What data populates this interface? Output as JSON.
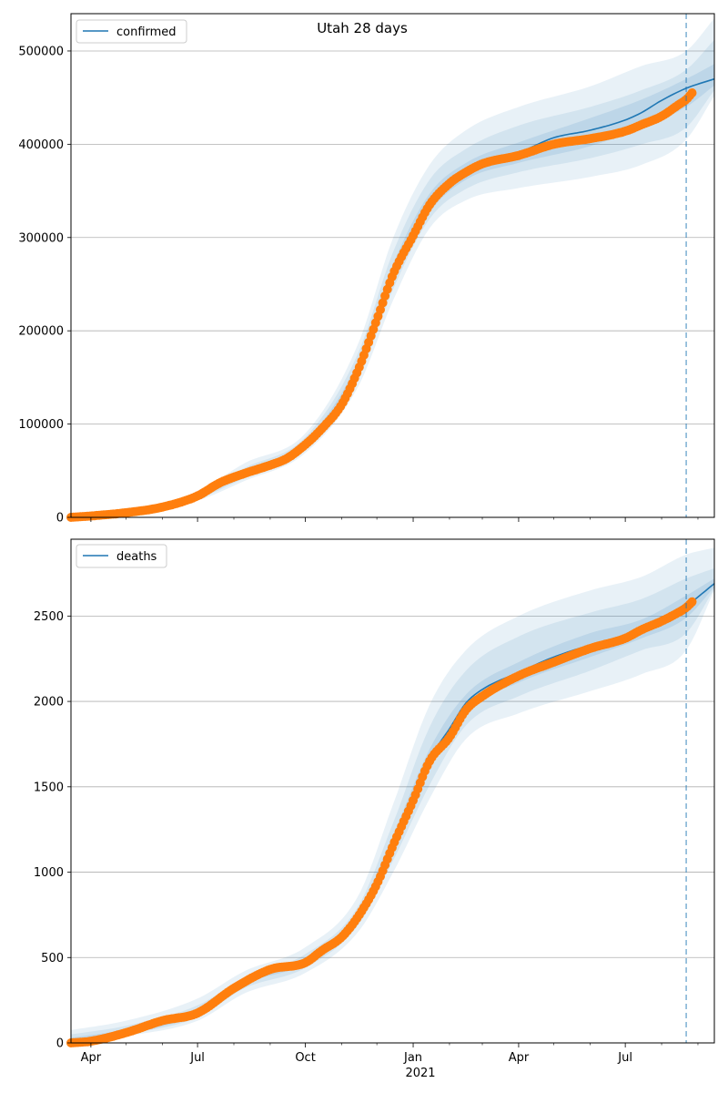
{
  "figure_title": "Utah 28 days",
  "x_tick_labels": [
    "Apr",
    "Jul",
    "Oct",
    "Jan",
    "Apr",
    "Jul"
  ],
  "x_year_label": "2021",
  "colors": {
    "model_line": "#1f77b4",
    "observed_points": "#ff7f0e",
    "band": "#1f77b4",
    "forecast_marker": "#1f77b4",
    "grid": "#b0b0b0"
  },
  "chart_data": [
    {
      "type": "line",
      "legend": "confirmed",
      "legend_position": "top-left",
      "grid": "horizontal",
      "xlim": [
        "2020-03-15",
        "2021-09-15"
      ],
      "ylim": [
        0,
        540000
      ],
      "yticks": [
        0,
        100000,
        200000,
        300000,
        400000,
        500000
      ],
      "ytick_labels": [
        "0",
        "100000",
        "200000",
        "300000",
        "400000",
        "500000"
      ],
      "forecast_start": "2021-08-22",
      "model": {
        "x": [
          "2020-03-15",
          "2020-04-01",
          "2020-05-01",
          "2020-06-01",
          "2020-07-01",
          "2020-07-20",
          "2020-08-10",
          "2020-09-01",
          "2020-09-15",
          "2020-10-01",
          "2020-10-15",
          "2020-11-01",
          "2020-11-15",
          "2020-12-01",
          "2020-12-15",
          "2021-01-01",
          "2021-01-15",
          "2021-02-01",
          "2021-02-15",
          "2021-03-01",
          "2021-04-01",
          "2021-05-01",
          "2021-06-01",
          "2021-07-01",
          "2021-07-15",
          "2021-08-01",
          "2021-08-22",
          "2021-09-15"
        ],
        "y": [
          0,
          1500,
          5000,
          11000,
          23000,
          37000,
          47000,
          56000,
          64000,
          79000,
          96000,
          122000,
          160000,
          213000,
          262000,
          303000,
          336000,
          359000,
          371000,
          380000,
          391000,
          407000,
          415000,
          426000,
          434000,
          447000,
          460000,
          470000
        ]
      },
      "observed": {
        "x": [
          "2020-03-15",
          "2020-04-01",
          "2020-05-01",
          "2020-06-01",
          "2020-07-01",
          "2020-07-20",
          "2020-08-10",
          "2020-09-01",
          "2020-09-15",
          "2020-10-01",
          "2020-10-15",
          "2020-11-01",
          "2020-11-15",
          "2020-12-01",
          "2020-12-15",
          "2021-01-01",
          "2021-01-15",
          "2021-02-01",
          "2021-02-15",
          "2021-03-01",
          "2021-04-01",
          "2021-05-01",
          "2021-06-01",
          "2021-07-01",
          "2021-07-15",
          "2021-08-01",
          "2021-08-15",
          "2021-08-22",
          "2021-08-27"
        ],
        "y": [
          0,
          1500,
          5000,
          11000,
          23000,
          37000,
          47000,
          56000,
          63000,
          78000,
          95000,
          121000,
          158000,
          212000,
          261000,
          302000,
          335000,
          358000,
          370000,
          379000,
          388000,
          400000,
          406000,
          414000,
          421000,
          430000,
          442000,
          448000,
          455000
        ]
      },
      "bands": [
        {
          "x": [
            "2020-03-15",
            "2020-05-01",
            "2020-07-01",
            "2020-08-10",
            "2020-10-01",
            "2020-11-15",
            "2020-12-15",
            "2021-01-15",
            "2021-02-15",
            "2021-04-01",
            "2021-06-01",
            "2021-07-15",
            "2021-08-22",
            "2021-09-15"
          ],
          "low": [
            0,
            4000,
            18000,
            39000,
            69000,
            140000,
            233000,
            310000,
            340000,
            353000,
            365000,
            378000,
            405000,
            452000
          ],
          "high": [
            0,
            6000,
            28000,
            58000,
            90000,
            186000,
            300000,
            378000,
            415000,
            440000,
            462000,
            484000,
            500000,
            535000
          ]
        },
        {
          "x": [
            "2020-03-15",
            "2020-05-01",
            "2020-07-01",
            "2020-08-10",
            "2020-10-01",
            "2020-11-15",
            "2020-12-15",
            "2021-01-15",
            "2021-02-15",
            "2021-04-01",
            "2021-06-01",
            "2021-07-15",
            "2021-08-22",
            "2021-09-15"
          ],
          "low": [
            0,
            4500,
            20000,
            42000,
            72000,
            148000,
            245000,
            320000,
            352000,
            370000,
            385000,
            400000,
            418000,
            458000
          ],
          "high": [
            0,
            5500,
            26000,
            53000,
            86000,
            176000,
            285000,
            362000,
            395000,
            420000,
            440000,
            458000,
            480000,
            512000
          ]
        },
        {
          "x": [
            "2020-03-15",
            "2020-05-01",
            "2020-07-01",
            "2020-08-10",
            "2020-10-01",
            "2020-11-15",
            "2020-12-15",
            "2021-01-15",
            "2021-02-15",
            "2021-04-01",
            "2021-06-01",
            "2021-07-15",
            "2021-08-22",
            "2021-09-15"
          ],
          "low": [
            0,
            4800,
            21500,
            44500,
            75000,
            153000,
            253000,
            327000,
            362000,
            380000,
            398000,
            418000,
            440000,
            463000
          ],
          "high": [
            0,
            5200,
            24500,
            49500,
            82000,
            167000,
            272000,
            347000,
            380000,
            402000,
            428000,
            448000,
            470000,
            486000
          ]
        }
      ]
    },
    {
      "type": "line",
      "legend": "deaths",
      "legend_position": "top-left",
      "grid": "horizontal",
      "xlim": [
        "2020-03-15",
        "2021-09-15"
      ],
      "ylim": [
        0,
        2950
      ],
      "yticks": [
        0,
        500,
        1000,
        1500,
        2000,
        2500
      ],
      "ytick_labels": [
        "0",
        "500",
        "1000",
        "1500",
        "2000",
        "2500"
      ],
      "forecast_start": "2021-08-22",
      "model": {
        "x": [
          "2020-03-15",
          "2020-04-01",
          "2020-05-01",
          "2020-06-01",
          "2020-07-01",
          "2020-08-01",
          "2020-09-01",
          "2020-10-01",
          "2020-10-15",
          "2020-11-01",
          "2020-11-15",
          "2020-12-01",
          "2020-12-15",
          "2021-01-01",
          "2021-01-15",
          "2021-02-01",
          "2021-02-15",
          "2021-03-01",
          "2021-04-01",
          "2021-05-01",
          "2021-06-01",
          "2021-07-01",
          "2021-07-15",
          "2021-08-01",
          "2021-08-22",
          "2021-09-15"
        ],
        "y": [
          0,
          10,
          60,
          130,
          180,
          330,
          420,
          470,
          540,
          620,
          740,
          940,
          1170,
          1430,
          1660,
          1840,
          1990,
          2070,
          2170,
          2260,
          2330,
          2390,
          2430,
          2480,
          2560,
          2690
        ]
      },
      "observed": {
        "x": [
          "2020-03-15",
          "2020-04-01",
          "2020-05-01",
          "2020-06-01",
          "2020-07-01",
          "2020-08-01",
          "2020-09-01",
          "2020-10-01",
          "2020-10-15",
          "2020-11-01",
          "2020-11-15",
          "2020-12-01",
          "2020-12-15",
          "2021-01-01",
          "2021-01-15",
          "2021-02-01",
          "2021-02-15",
          "2021-03-01",
          "2021-04-01",
          "2021-05-01",
          "2021-06-01",
          "2021-07-01",
          "2021-07-15",
          "2021-08-01",
          "2021-08-15",
          "2021-08-22",
          "2021-08-28"
        ],
        "y": [
          0,
          10,
          60,
          130,
          175,
          320,
          430,
          470,
          540,
          620,
          740,
          930,
          1160,
          1420,
          1650,
          1790,
          1950,
          2030,
          2150,
          2230,
          2310,
          2370,
          2420,
          2470,
          2520,
          2550,
          2590
        ]
      },
      "bands": [
        {
          "x": [
            "2020-03-15",
            "2020-05-01",
            "2020-07-01",
            "2020-08-10",
            "2020-10-01",
            "2020-11-15",
            "2020-12-15",
            "2021-01-15",
            "2021-02-15",
            "2021-04-01",
            "2021-06-01",
            "2021-07-15",
            "2021-08-22",
            "2021-09-15"
          ],
          "low": [
            0,
            40,
            130,
            290,
            410,
            650,
            1000,
            1430,
            1780,
            1930,
            2060,
            2160,
            2300,
            2650
          ],
          "high": [
            75,
            130,
            260,
            420,
            560,
            860,
            1400,
            1980,
            2300,
            2500,
            2650,
            2730,
            2860,
            2900
          ]
        },
        {
          "x": [
            "2020-03-15",
            "2020-05-01",
            "2020-07-01",
            "2020-08-10",
            "2020-10-01",
            "2020-11-15",
            "2020-12-15",
            "2021-01-15",
            "2021-02-15",
            "2021-04-01",
            "2021-06-01",
            "2021-07-15",
            "2021-08-22",
            "2021-09-15"
          ],
          "low": [
            0,
            50,
            150,
            320,
            440,
            690,
            1070,
            1510,
            1860,
            2030,
            2180,
            2300,
            2400,
            2660
          ],
          "high": [
            50,
            100,
            220,
            380,
            520,
            800,
            1290,
            1850,
            2180,
            2380,
            2520,
            2600,
            2720,
            2780
          ]
        },
        {
          "x": [
            "2020-03-15",
            "2020-05-01",
            "2020-07-01",
            "2020-08-10",
            "2020-10-01",
            "2020-11-15",
            "2020-12-15",
            "2021-01-15",
            "2021-02-15",
            "2021-04-01",
            "2021-06-01",
            "2021-07-15",
            "2021-08-22",
            "2021-09-15"
          ],
          "low": [
            0,
            55,
            165,
            345,
            465,
            720,
            1130,
            1600,
            1940,
            2110,
            2260,
            2370,
            2490,
            2670
          ],
          "high": [
            30,
            80,
            200,
            360,
            500,
            770,
            1220,
            1720,
            2040,
            2230,
            2400,
            2480,
            2620,
            2720
          ]
        }
      ]
    }
  ]
}
